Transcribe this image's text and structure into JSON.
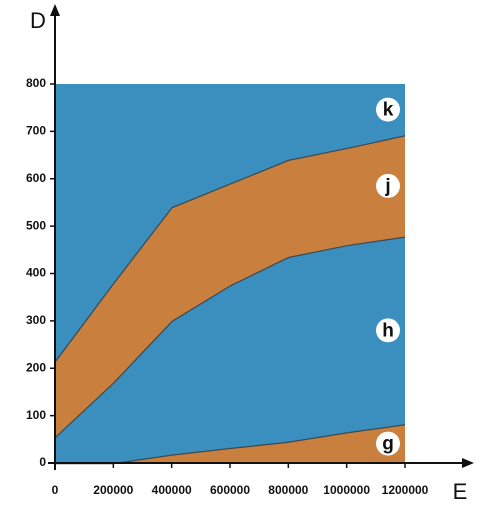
{
  "chart_data": {
    "type": "area",
    "stacked": true,
    "x_label": "E",
    "y_label": "D",
    "x": [
      0,
      200000,
      400000,
      600000,
      800000,
      1000000,
      1200000
    ],
    "series": [
      {
        "name": "g",
        "color": "#c9803e",
        "values": [
          0,
          0,
          18,
          32,
          45,
          65,
          82
        ]
      },
      {
        "name": "h",
        "color": "#3a8fbf",
        "values": [
          55,
          170,
          282,
          343,
          390,
          395,
          396
        ]
      },
      {
        "name": "j",
        "color": "#c9803e",
        "values": [
          160,
          210,
          240,
          215,
          205,
          205,
          214
        ]
      },
      {
        "name": "k",
        "color": "#3a8fbf",
        "values": [
          585,
          420,
          260,
          210,
          160,
          135,
          108
        ]
      }
    ],
    "xlim": [
      0,
      1200000
    ],
    "ylim": [
      0,
      800
    ],
    "xticks": [
      0,
      200000,
      400000,
      600000,
      800000,
      1000000,
      1200000
    ],
    "yticks": [
      0,
      100,
      200,
      300,
      400,
      500,
      600,
      700,
      800
    ]
  }
}
